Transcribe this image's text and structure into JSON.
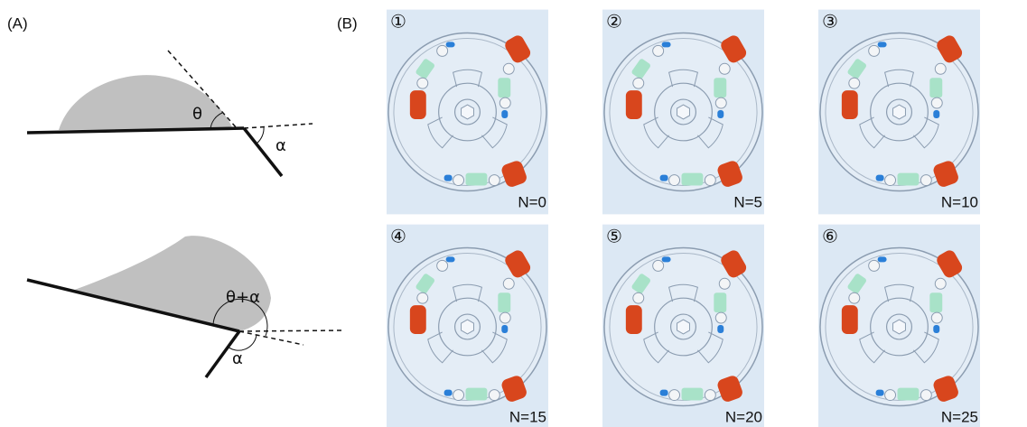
{
  "panel_a": {
    "label": "(A)",
    "top": {
      "theta": "θ",
      "alpha": "α"
    },
    "bottom": {
      "theta_alpha": "θ+α",
      "alpha": "α"
    }
  },
  "panel_b": {
    "label": "(B)",
    "photos": [
      {
        "index": "①",
        "caption": "N=0"
      },
      {
        "index": "②",
        "caption": "N=5"
      },
      {
        "index": "③",
        "caption": "N=10"
      },
      {
        "index": "④",
        "caption": "N=15"
      },
      {
        "index": "⑤",
        "caption": "N=20"
      },
      {
        "index": "⑥",
        "caption": "N=25"
      }
    ]
  }
}
